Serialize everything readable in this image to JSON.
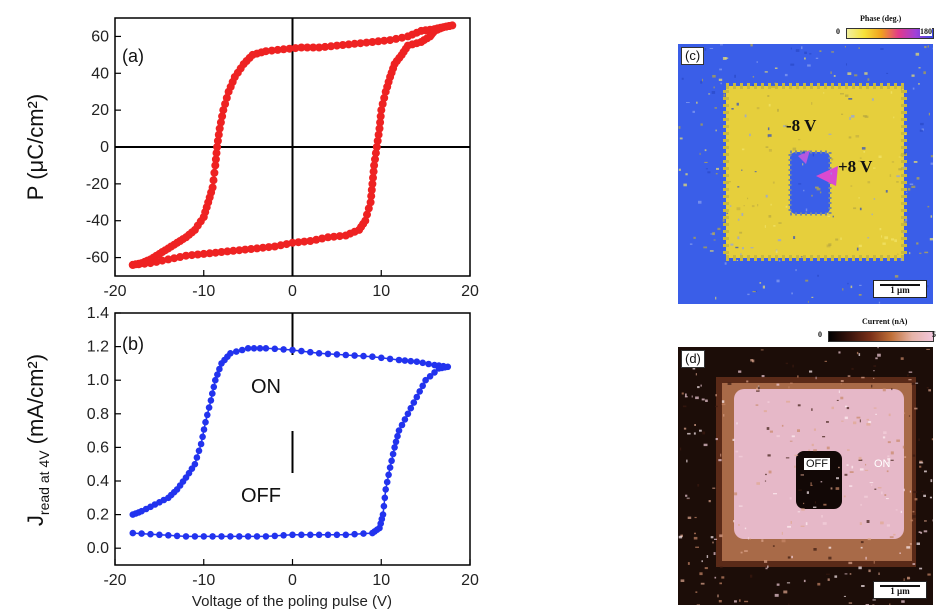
{
  "chart_data": [
    {
      "type": "line",
      "panel": "(a)",
      "xlim": [
        -20,
        20
      ],
      "ylim": [
        -70,
        70
      ],
      "xticks": [
        -20,
        -10,
        0,
        10,
        20
      ],
      "yticks": [
        -60,
        -40,
        -20,
        0,
        20,
        40,
        60
      ],
      "ylabel": "P (μC/cm²)",
      "xlabel": "",
      "series": [
        {
          "color": "#ee2222",
          "points": [
            [
              -18,
              -64
            ],
            [
              -17,
              -63
            ],
            [
              -16,
              -61
            ],
            [
              -15,
              -58
            ],
            [
              -14,
              -55
            ],
            [
              -13,
              -52
            ],
            [
              -12,
              -49
            ],
            [
              -11,
              -45
            ],
            [
              -10,
              -38
            ],
            [
              -9.5,
              -30
            ],
            [
              -9,
              -22
            ],
            [
              -8.7,
              -10
            ],
            [
              -8.5,
              0
            ],
            [
              -8.2,
              10
            ],
            [
              -7.8,
              20
            ],
            [
              -7.2,
              30
            ],
            [
              -6.5,
              38
            ],
            [
              -5.5,
              45
            ],
            [
              -4.5,
              50
            ],
            [
              -3,
              52
            ],
            [
              -1,
              53
            ],
            [
              1,
              54
            ],
            [
              3,
              54
            ],
            [
              5,
              55
            ],
            [
              7,
              56
            ],
            [
              9,
              57
            ],
            [
              11,
              58
            ],
            [
              13,
              60
            ],
            [
              14.5,
              63
            ],
            [
              16,
              64
            ],
            [
              17,
              65
            ],
            [
              18,
              66
            ],
            [
              17,
              65
            ],
            [
              16,
              63
            ],
            [
              15.5,
              60
            ],
            [
              14.5,
              57
            ],
            [
              13,
              55
            ],
            [
              12.3,
              50
            ],
            [
              11.5,
              45
            ],
            [
              11,
              38
            ],
            [
              10.5,
              30
            ],
            [
              10,
              20
            ],
            [
              9.8,
              10
            ],
            [
              9.5,
              0
            ],
            [
              9.2,
              -10
            ],
            [
              9,
              -20
            ],
            [
              8.8,
              -30
            ],
            [
              8.2,
              -40
            ],
            [
              7.5,
              -45
            ],
            [
              6,
              -48
            ],
            [
              4,
              -49
            ],
            [
              2,
              -51
            ],
            [
              0,
              -52
            ],
            [
              -2,
              -54
            ],
            [
              -4,
              -55
            ],
            [
              -6,
              -56
            ],
            [
              -8,
              -57
            ],
            [
              -10,
              -58
            ],
            [
              -12,
              -59
            ],
            [
              -14,
              -61
            ],
            [
              -16,
              -63
            ],
            [
              -18,
              -64
            ]
          ]
        }
      ]
    },
    {
      "type": "line",
      "panel": "(b)",
      "xlim": [
        -20,
        20
      ],
      "ylim": [
        -0.1,
        1.4
      ],
      "xticks": [
        -20,
        -10,
        0,
        10,
        20
      ],
      "yticks": [
        0.0,
        0.2,
        0.4,
        0.6,
        0.8,
        1.0,
        1.2,
        1.4
      ],
      "ylabel": "J_read at 4V (mA/cm²)",
      "ylabel_main": "J",
      "ylabel_sub": "read at 4V",
      "ylabel_tail": " (mA/cm²)",
      "xlabel": "Voltage of the poling pulse (V)",
      "annotations": [
        "ON",
        "OFF"
      ],
      "series": [
        {
          "color": "#2233ee",
          "points": [
            [
              -18,
              0.2
            ],
            [
              -17,
              0.22
            ],
            [
              -15.5,
              0.26
            ],
            [
              -14,
              0.3
            ],
            [
              -13,
              0.35
            ],
            [
              -12,
              0.42
            ],
            [
              -11,
              0.5
            ],
            [
              -10.3,
              0.62
            ],
            [
              -9.8,
              0.75
            ],
            [
              -9.2,
              0.88
            ],
            [
              -8.7,
              1.0
            ],
            [
              -8,
              1.1
            ],
            [
              -7,
              1.16
            ],
            [
              -5,
              1.19
            ],
            [
              -3,
              1.19
            ],
            [
              0,
              1.18
            ],
            [
              3,
              1.16
            ],
            [
              6,
              1.15
            ],
            [
              9,
              1.14
            ],
            [
              12,
              1.12
            ],
            [
              14,
              1.11
            ],
            [
              16,
              1.09
            ],
            [
              17.5,
              1.08
            ],
            [
              16.5,
              1.07
            ],
            [
              15,
              1.0
            ],
            [
              14,
              0.9
            ],
            [
              13,
              0.8
            ],
            [
              12,
              0.7
            ],
            [
              11.5,
              0.6
            ],
            [
              11,
              0.48
            ],
            [
              10.5,
              0.35
            ],
            [
              10.2,
              0.2
            ],
            [
              9.8,
              0.12
            ],
            [
              9,
              0.09
            ],
            [
              6,
              0.08
            ],
            [
              3,
              0.08
            ],
            [
              0,
              0.08
            ],
            [
              -3,
              0.07
            ],
            [
              -6,
              0.07
            ],
            [
              -9,
              0.07
            ],
            [
              -12,
              0.07
            ],
            [
              -15,
              0.08
            ],
            [
              -18,
              0.09
            ]
          ]
        }
      ]
    }
  ],
  "image_panels": {
    "c": {
      "tag": "(c)",
      "colorbar_title": "Phase (deg.)",
      "colorbar_min": "0",
      "colorbar_max": "180",
      "labels": [
        "-8 V",
        "+8 V"
      ],
      "scale_bar": "1 µm",
      "colors": {
        "background": "#3a5ee8",
        "written": "#e8d03a"
      }
    },
    "d": {
      "tag": "(d)",
      "colorbar_title": "Current (nA)",
      "colorbar_min": "0",
      "colorbar_max": "5",
      "labels": [
        "OFF",
        "ON"
      ],
      "scale_bar": "1 µm",
      "colors": {
        "background": "#1a0c08",
        "written": "#e6b8c8"
      }
    }
  }
}
